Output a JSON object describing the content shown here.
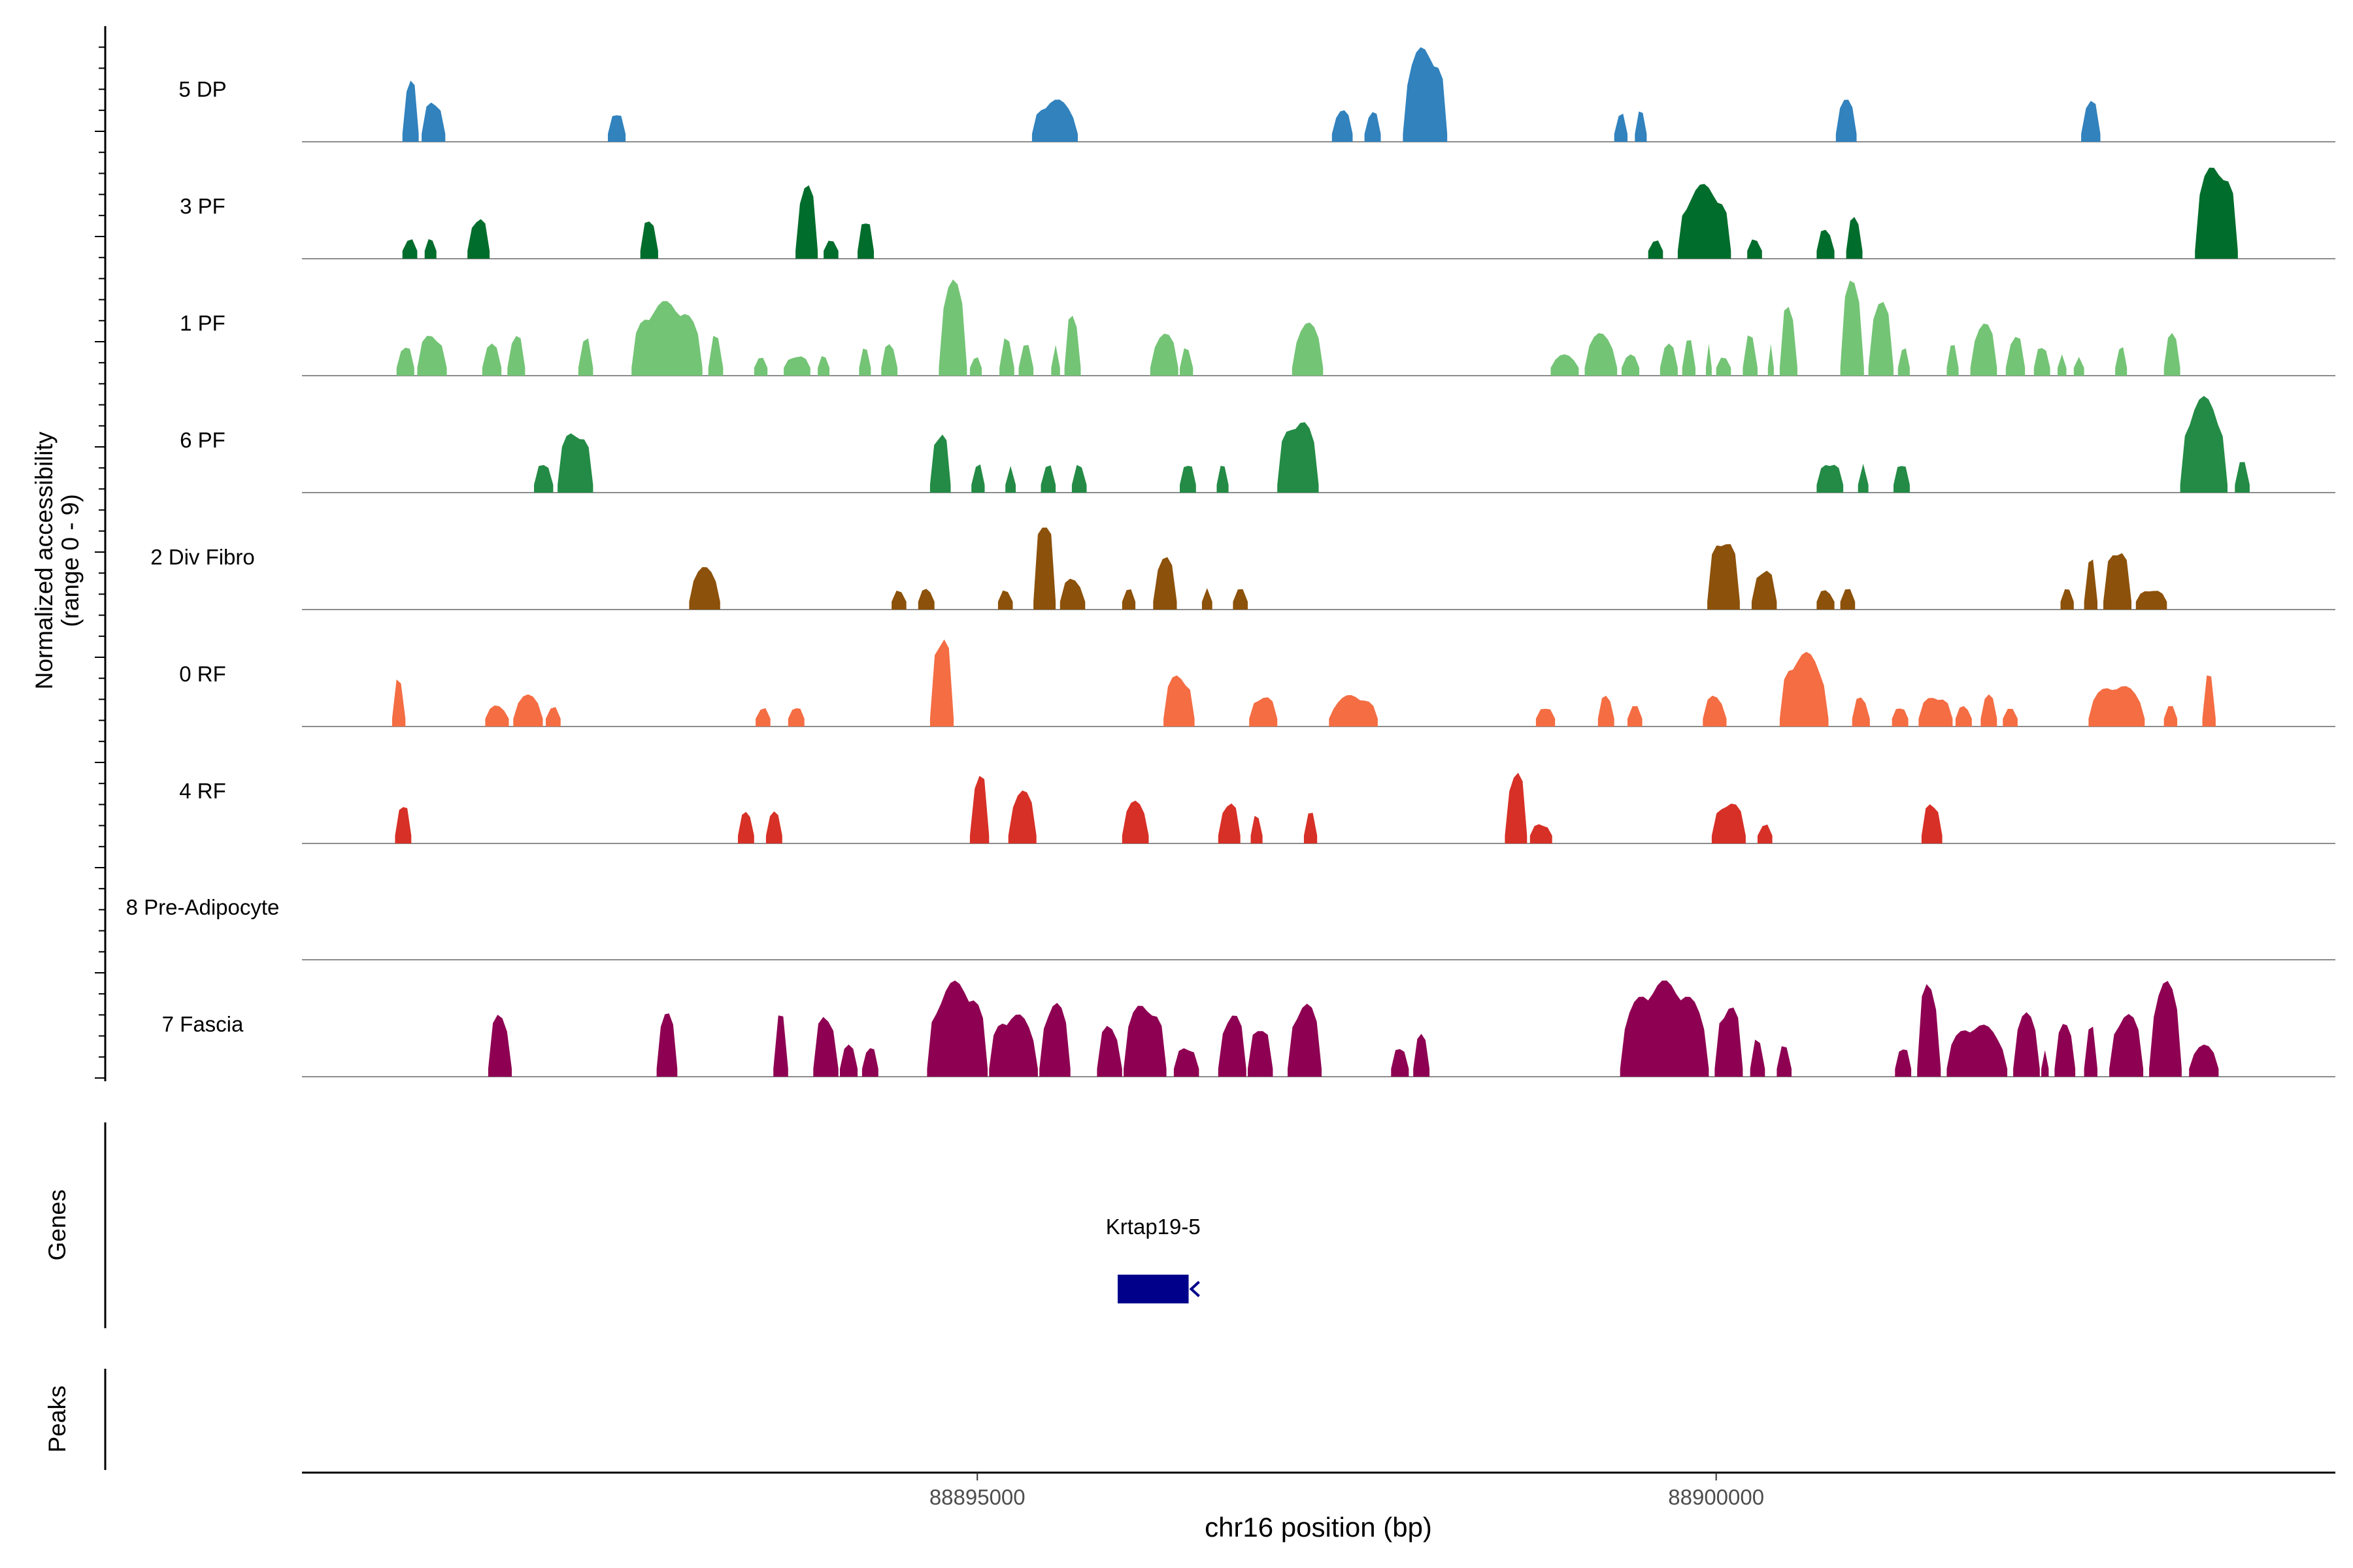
{
  "chart_data": {
    "type": "area",
    "title": "",
    "region": "chr16",
    "xlabel": "chr16 position (bp)",
    "ylabel_line1": "Normalized accessibility",
    "ylabel_line2": "(range 0 - 9)",
    "ylim": [
      0,
      9
    ],
    "xlim": [
      88890430,
      88904190
    ],
    "x_ticks": [
      88895000,
      88900000
    ],
    "x_tick_labels": [
      "88895000",
      "88900000"
    ],
    "genes_label": "Genes",
    "peaks_label": "Peaks",
    "genes": [
      {
        "name": "Krtap19-5",
        "start": 88895950,
        "end": 88896430,
        "strand": "-",
        "color": "#00008B"
      }
    ],
    "peaks": [],
    "series": [
      {
        "name": "5 DP",
        "color": "#3182BD",
        "regions": [
          [
            88891110,
            88891220,
            6
          ],
          [
            88891240,
            88891400,
            4
          ],
          [
            88892500,
            88892620,
            3
          ],
          [
            88895370,
            88895680,
            4
          ],
          [
            88897400,
            88897540,
            3
          ],
          [
            88897620,
            88897730,
            3
          ],
          [
            88897880,
            88898180,
            9
          ],
          [
            88899310,
            88899400,
            3
          ],
          [
            88899450,
            88899530,
            3
          ],
          [
            88900810,
            88900950,
            4
          ],
          [
            88902470,
            88902600,
            4
          ]
        ]
      },
      {
        "name": "3 PF",
        "color": "#006D2C",
        "regions": [
          [
            88891110,
            88891210,
            2
          ],
          [
            88891260,
            88891340,
            2
          ],
          [
            88891550,
            88891700,
            4
          ],
          [
            88892720,
            88892840,
            4
          ],
          [
            88893770,
            88893920,
            7
          ],
          [
            88893960,
            88894060,
            2
          ],
          [
            88894190,
            88894300,
            4
          ],
          [
            88899540,
            88899640,
            2
          ],
          [
            88899740,
            88900100,
            7
          ],
          [
            88900210,
            88900310,
            2
          ],
          [
            88900680,
            88900800,
            3
          ],
          [
            88900880,
            88900990,
            4
          ],
          [
            88903240,
            88903530,
            9
          ]
        ]
      },
      {
        "name": "1 PF",
        "color": "#74C476",
        "regions": [
          [
            88891070,
            88891190,
            3
          ],
          [
            88891210,
            88891410,
            4
          ],
          [
            88891650,
            88891780,
            3
          ],
          [
            88891820,
            88891940,
            4
          ],
          [
            88892300,
            88892400,
            4
          ],
          [
            88892660,
            88893140,
            7
          ],
          [
            88893180,
            88893280,
            4
          ],
          [
            88893490,
            88893580,
            2
          ],
          [
            88893690,
            88893870,
            2
          ],
          [
            88893920,
            88894000,
            2
          ],
          [
            88894200,
            88894280,
            3
          ],
          [
            88894350,
            88894460,
            3
          ],
          [
            88894740,
            88894930,
            9
          ],
          [
            88894950,
            88895030,
            2
          ],
          [
            88895150,
            88895250,
            4
          ],
          [
            88895280,
            88895380,
            3
          ],
          [
            88895500,
            88895560,
            3
          ],
          [
            88895590,
            88895700,
            6
          ],
          [
            88896170,
            88896360,
            4
          ],
          [
            88896370,
            88896460,
            3
          ],
          [
            88897130,
            88897340,
            5
          ],
          [
            88898880,
            88899070,
            2
          ],
          [
            88899110,
            88899330,
            4
          ],
          [
            88899360,
            88899480,
            2
          ],
          [
            88899620,
            88899740,
            3
          ],
          [
            88899770,
            88899860,
            4
          ],
          [
            88899930,
            88899970,
            3
          ],
          [
            88900000,
            88900100,
            2
          ],
          [
            88900180,
            88900280,
            4
          ],
          [
            88900350,
            88900390,
            3
          ],
          [
            88900430,
            88900550,
            7
          ],
          [
            88900840,
            88901000,
            9
          ],
          [
            88901030,
            88901200,
            7
          ],
          [
            88901230,
            88901310,
            3
          ],
          [
            88901560,
            88901640,
            3
          ],
          [
            88901720,
            88901900,
            5
          ],
          [
            88901960,
            88902090,
            4
          ],
          [
            88902150,
            88902260,
            3
          ],
          [
            88902310,
            88902370,
            2
          ],
          [
            88902420,
            88902490,
            2
          ],
          [
            88902700,
            88902780,
            3
          ],
          [
            88903030,
            88903140,
            4
          ]
        ]
      },
      {
        "name": "6 PF",
        "color": "#238B45",
        "regions": [
          [
            88892000,
            88892130,
            3
          ],
          [
            88892160,
            88892400,
            6
          ],
          [
            88894680,
            88894820,
            6
          ],
          [
            88894960,
            88895050,
            3
          ],
          [
            88895190,
            88895260,
            3
          ],
          [
            88895430,
            88895530,
            3
          ],
          [
            88895640,
            88895740,
            3
          ],
          [
            88896370,
            88896480,
            3
          ],
          [
            88896620,
            88896700,
            3
          ],
          [
            88897030,
            88897310,
            7
          ],
          [
            88900680,
            88900860,
            3
          ],
          [
            88900960,
            88901030,
            3
          ],
          [
            88901200,
            88901310,
            3
          ],
          [
            88903140,
            88903460,
            9
          ],
          [
            88903510,
            88903610,
            3
          ]
        ]
      },
      {
        "name": "2 Div Fibro",
        "color": "#8C510A",
        "regions": [
          [
            88893050,
            88893260,
            4
          ],
          [
            88894420,
            88894520,
            2
          ],
          [
            88894600,
            88894710,
            2
          ],
          [
            88895140,
            88895240,
            2
          ],
          [
            88895380,
            88895530,
            9
          ],
          [
            88895560,
            88895730,
            3
          ],
          [
            88895980,
            88896070,
            2
          ],
          [
            88896190,
            88896350,
            5
          ],
          [
            88896520,
            88896590,
            2
          ],
          [
            88896730,
            88896830,
            2
          ],
          [
            88899940,
            88900160,
            7
          ],
          [
            88900240,
            88900410,
            4
          ],
          [
            88900680,
            88900800,
            2
          ],
          [
            88900840,
            88900940,
            2
          ],
          [
            88902330,
            88902420,
            2
          ],
          [
            88902490,
            88902580,
            5
          ],
          [
            88902620,
            88902810,
            6
          ],
          [
            88902840,
            88903050,
            2
          ]
        ]
      },
      {
        "name": "0 RF",
        "color": "#F46D43",
        "regions": [
          [
            88891040,
            88891130,
            5
          ],
          [
            88891670,
            88891830,
            2
          ],
          [
            88891860,
            88892060,
            3
          ],
          [
            88892080,
            88892180,
            2
          ],
          [
            88893500,
            88893600,
            2
          ],
          [
            88893720,
            88893830,
            2
          ],
          [
            88894680,
            88894840,
            9
          ],
          [
            88896260,
            88896470,
            5
          ],
          [
            88896840,
            88897030,
            3
          ],
          [
            88897380,
            88897710,
            3
          ],
          [
            88898780,
            88898910,
            2
          ],
          [
            88899200,
            88899310,
            3
          ],
          [
            88899400,
            88899500,
            2
          ],
          [
            88899910,
            88900070,
            3
          ],
          [
            88900430,
            88900760,
            7
          ],
          [
            88900920,
            88901040,
            3
          ],
          [
            88901190,
            88901300,
            2
          ],
          [
            88901370,
            88901600,
            3
          ],
          [
            88901620,
            88901730,
            2
          ],
          [
            88901790,
            88901900,
            3
          ],
          [
            88901940,
            88902040,
            2
          ],
          [
            88902520,
            88902900,
            4
          ],
          [
            88903030,
            88903120,
            2
          ],
          [
            88903290,
            88903380,
            5
          ]
        ]
      },
      {
        "name": "4 RF",
        "color": "#D73027",
        "regions": [
          [
            88891060,
            88891170,
            4
          ],
          [
            88893380,
            88893490,
            3
          ],
          [
            88893570,
            88893680,
            3
          ],
          [
            88894950,
            88895080,
            7
          ],
          [
            88895210,
            88895400,
            5
          ],
          [
            88895980,
            88896160,
            4
          ],
          [
            88896630,
            88896780,
            4
          ],
          [
            88896850,
            88896930,
            3
          ],
          [
            88897210,
            88897300,
            3
          ],
          [
            88898570,
            88898720,
            7
          ],
          [
            88898740,
            88898890,
            2
          ],
          [
            88899970,
            88900200,
            4
          ],
          [
            88900280,
            88900380,
            2
          ],
          [
            88901390,
            88901530,
            4
          ]
        ]
      },
      {
        "name": "8 Pre-Adipocyte",
        "color": "#969696",
        "regions": []
      },
      {
        "name": "7 Fascia",
        "color": "#8E0152",
        "regions": [
          [
            88891690,
            88891850,
            6
          ],
          [
            88892830,
            88892970,
            6
          ],
          [
            88893620,
            88893720,
            6
          ],
          [
            88893890,
            88894060,
            6
          ],
          [
            88894070,
            88894190,
            3
          ],
          [
            88894220,
            88894330,
            3
          ],
          [
            88894660,
            88895070,
            9
          ],
          [
            88895080,
            88895410,
            6
          ],
          [
            88895420,
            88895630,
            7
          ],
          [
            88895810,
            88895980,
            5
          ],
          [
            88895990,
            88896280,
            7
          ],
          [
            88896330,
            88896500,
            3
          ],
          [
            88896630,
            88896820,
            6
          ],
          [
            88896830,
            88897000,
            5
          ],
          [
            88897100,
            88897330,
            7
          ],
          [
            88897800,
            88897920,
            3
          ],
          [
            88897950,
            88898060,
            4
          ],
          [
            88899350,
            88899950,
            9
          ],
          [
            88899990,
            88900180,
            7
          ],
          [
            88900230,
            88900330,
            4
          ],
          [
            88900410,
            88900510,
            3
          ],
          [
            88901210,
            88901320,
            3
          ],
          [
            88901360,
            88901520,
            9
          ],
          [
            88901560,
            88901970,
            5
          ],
          [
            88902010,
            88902190,
            6
          ],
          [
            88902200,
            88902250,
            3
          ],
          [
            88902290,
            88902430,
            5
          ],
          [
            88902490,
            88902580,
            5
          ],
          [
            88902660,
            88902890,
            6
          ],
          [
            88902930,
            88903150,
            9
          ],
          [
            88903200,
            88903400,
            3
          ]
        ]
      }
    ]
  }
}
